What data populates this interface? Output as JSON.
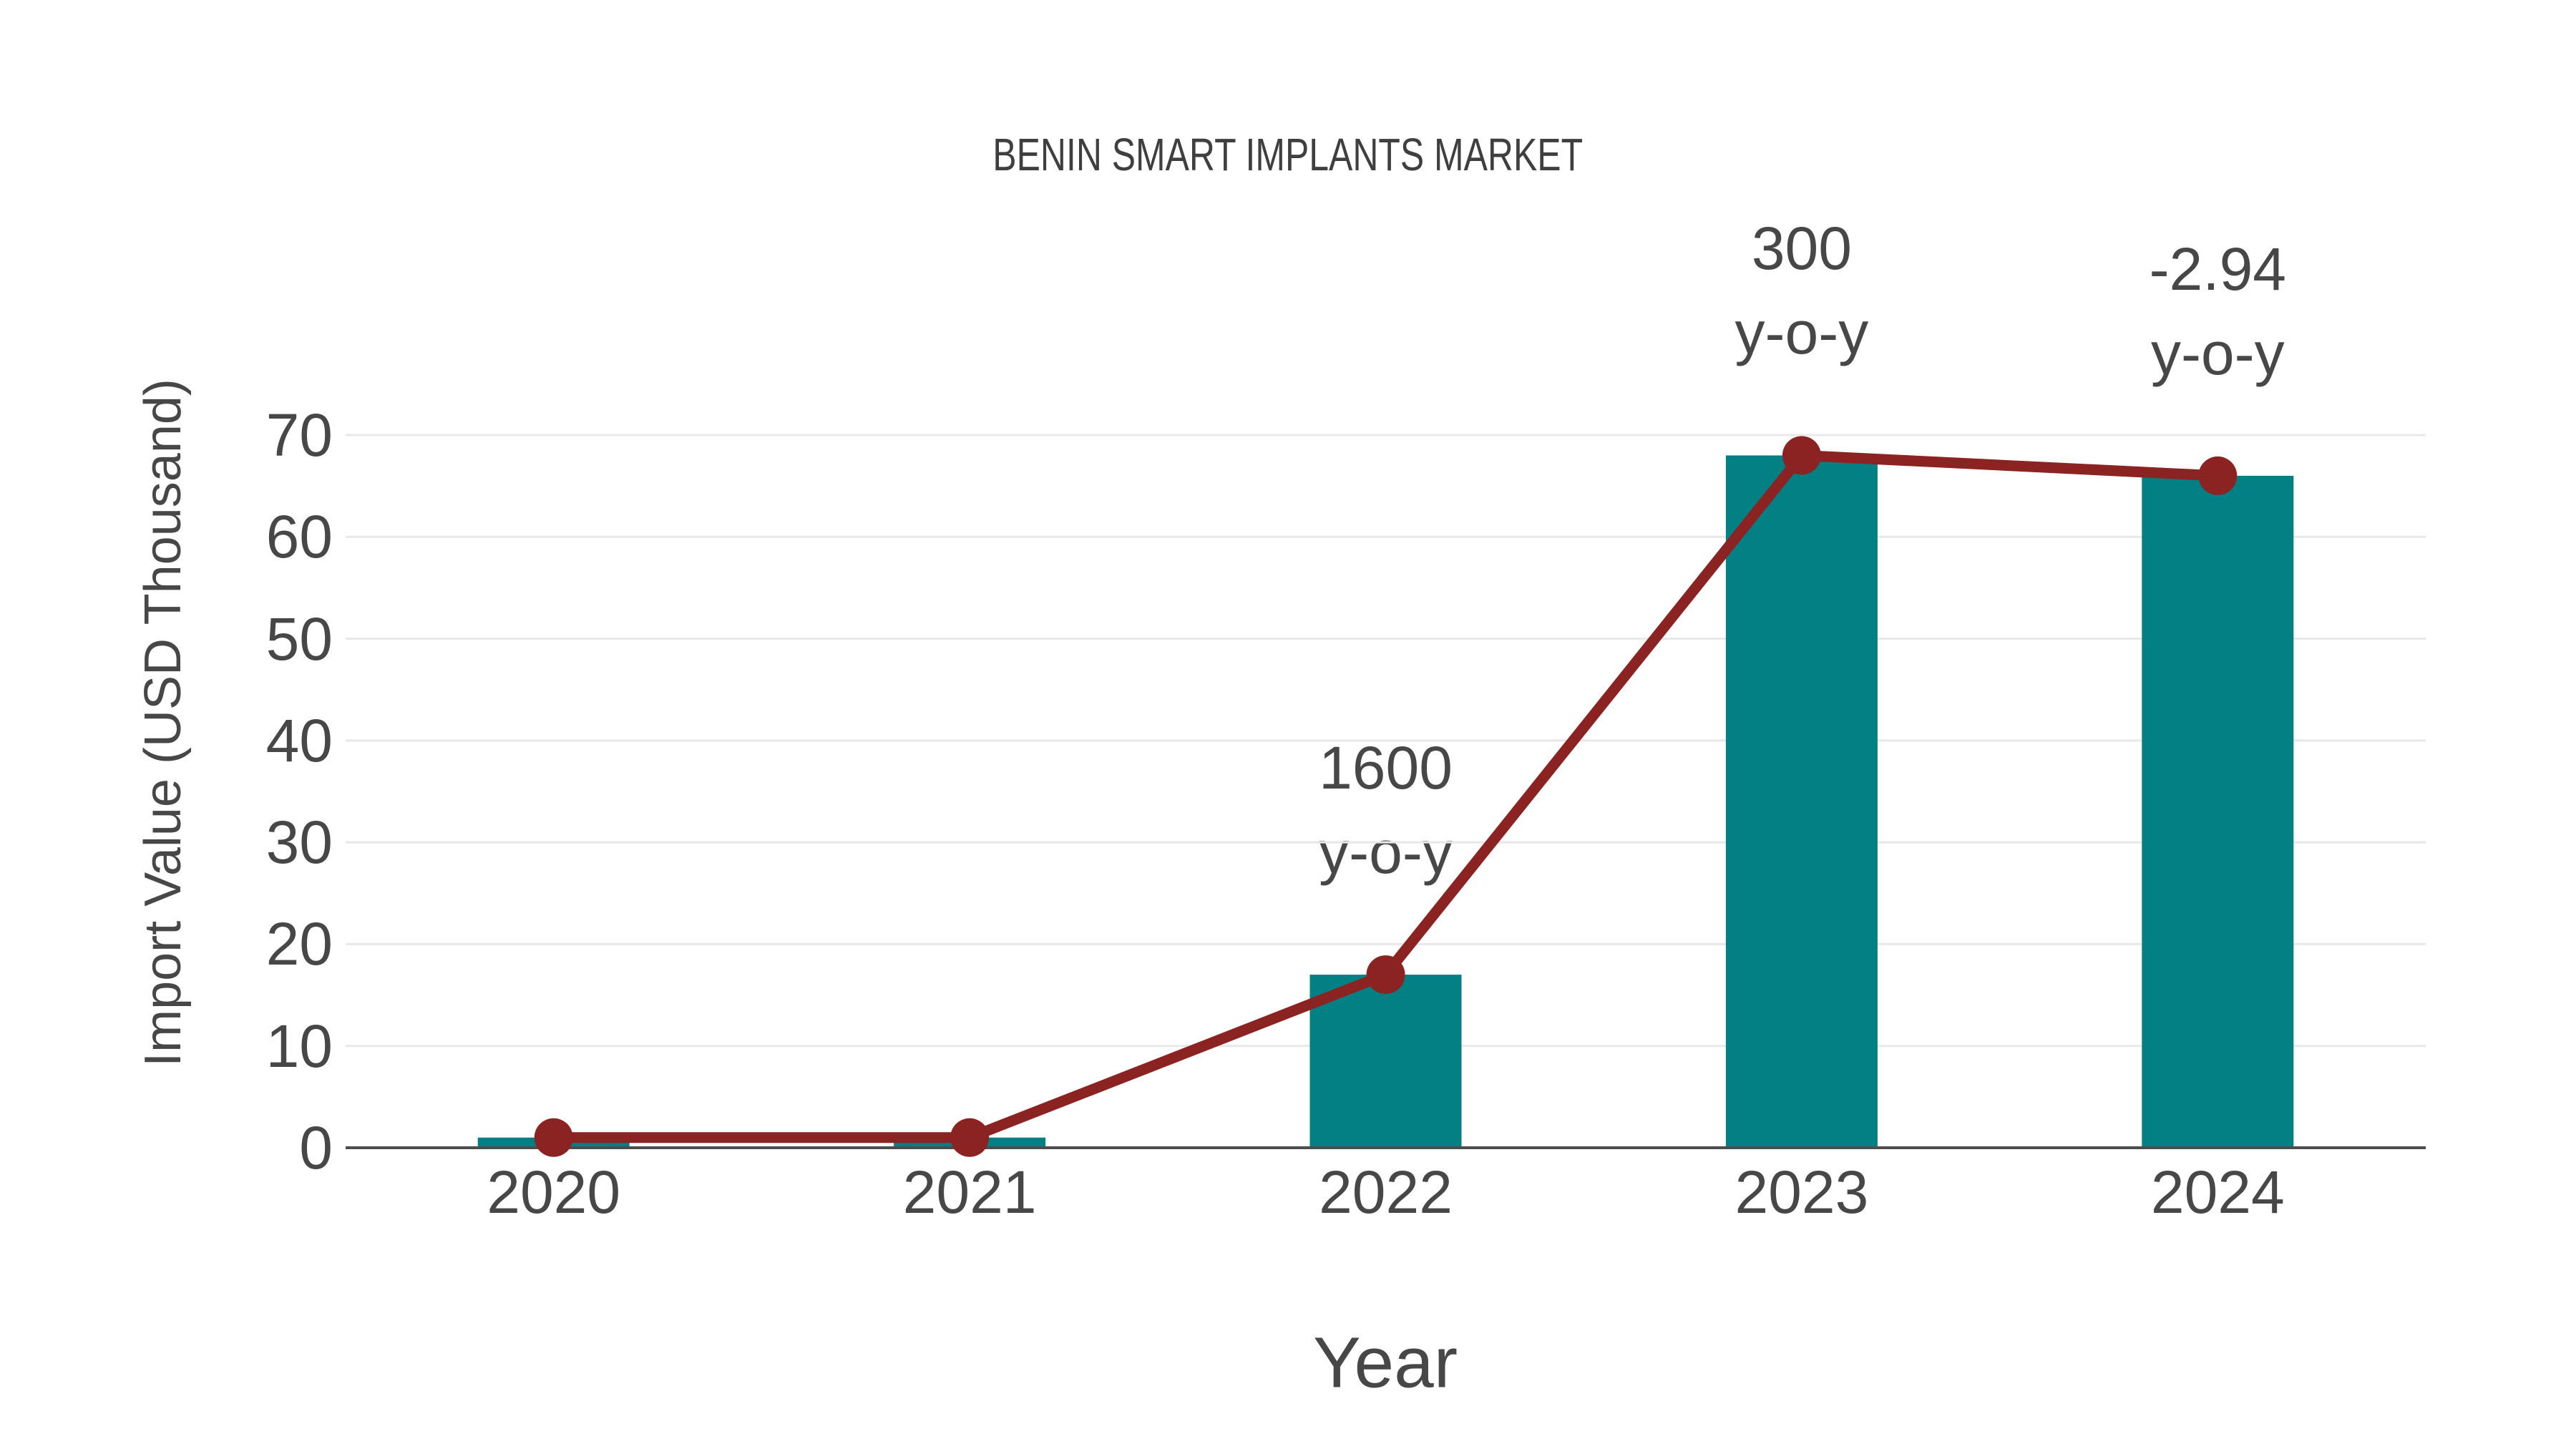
{
  "chart_data": {
    "type": "bar",
    "title": "BENIN SMART IMPLANTS MARKET",
    "xlabel": "Year",
    "ylabel": "Import Value (USD Thousand)",
    "categories": [
      "2020",
      "2021",
      "2022",
      "2023",
      "2024"
    ],
    "series": [
      {
        "name": "import-value-bars",
        "type": "bar",
        "values": [
          1,
          1,
          17,
          68,
          66
        ]
      },
      {
        "name": "yoy-trend-line",
        "type": "line",
        "values": [
          1,
          1,
          17,
          68,
          66
        ]
      }
    ],
    "annotations": [
      {
        "category": "2022",
        "index": 2,
        "line1": "1600",
        "line2": "y-o-y"
      },
      {
        "category": "2023",
        "index": 3,
        "line1": "300",
        "line2": "y-o-y"
      },
      {
        "category": "2024",
        "index": 4,
        "line1": "-2.94",
        "line2": "y-o-y"
      }
    ],
    "yticks": [
      0,
      10,
      20,
      30,
      40,
      50,
      60,
      70
    ],
    "ylim": [
      0,
      70
    ],
    "grid": true,
    "legend_position": "none",
    "colors": {
      "bar": "#038083",
      "line": "#8B2322",
      "marker": "#8B2322",
      "grid": "#E8E8E8",
      "axis": "#4D4D4D",
      "text": "#474747",
      "title": "#3F3F3F"
    }
  }
}
